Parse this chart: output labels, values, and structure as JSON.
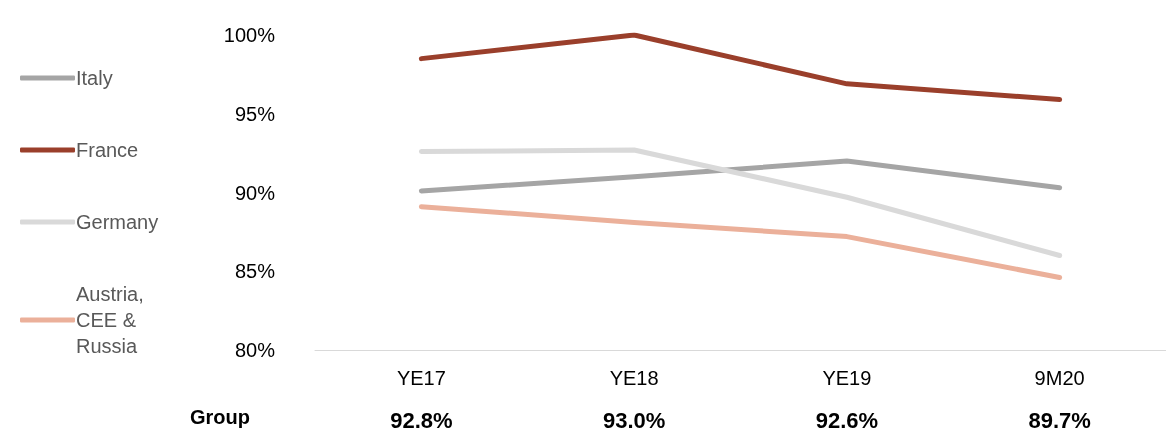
{
  "chart_data": {
    "type": "line",
    "categories": [
      "YE17",
      "YE18",
      "YE19",
      "9M20"
    ],
    "ylim": [
      80,
      100
    ],
    "yticks": [
      {
        "value": 80,
        "label": "80%"
      },
      {
        "value": 85,
        "label": "85%"
      },
      {
        "value": 90,
        "label": "90%"
      },
      {
        "value": 95,
        "label": "95%"
      },
      {
        "value": 100,
        "label": "100%"
      }
    ],
    "grid": false,
    "legend": "left",
    "marker": "none",
    "line_style": "solid",
    "series": [
      {
        "name": "Italy",
        "color": "#a5a5a5",
        "values": [
          90.1,
          91.0,
          92.0,
          90.3
        ]
      },
      {
        "name": "France",
        "color": "#9a3f2b",
        "values": [
          98.5,
          100.0,
          96.9,
          95.9
        ]
      },
      {
        "name": "Germany",
        "color": "#d9d9d9",
        "values": [
          92.6,
          92.7,
          89.7,
          86.0
        ]
      },
      {
        "name": "Austria, CEE & Russia",
        "color": "#ebb09a",
        "values": [
          89.1,
          88.1,
          87.2,
          84.6
        ]
      }
    ],
    "annotations": [
      "Group",
      "92.8%",
      "93.0%",
      "92.6%",
      "89.7%"
    ]
  }
}
